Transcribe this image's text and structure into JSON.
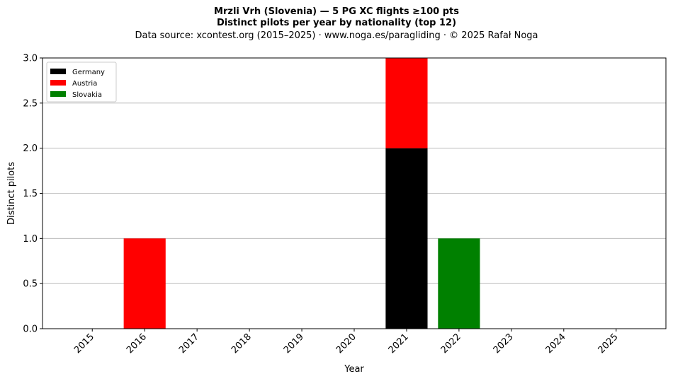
{
  "header": {
    "title_line1": "Mrzli Vrh (Slovenia)  —  5 PG XC flights ≥100 pts",
    "title_line2": "Distinct pilots per year by nationality (top 12)",
    "subtitle": "Data source: xcontest.org (2015–2025)  ·  www.noga.es/paragliding  ·  © 2025 Rafał Noga"
  },
  "chart_data": {
    "type": "bar",
    "stacked": true,
    "categories": [
      "2015",
      "2016",
      "2017",
      "2018",
      "2019",
      "2020",
      "2021",
      "2022",
      "2023",
      "2024",
      "2025"
    ],
    "series": [
      {
        "name": "Germany",
        "color": "#000000",
        "values": [
          0,
          0,
          0,
          0,
          0,
          0,
          2,
          0,
          0,
          0,
          0
        ]
      },
      {
        "name": "Austria",
        "color": "#ff0000",
        "values": [
          0,
          1,
          0,
          0,
          0,
          0,
          1,
          0,
          0,
          0,
          0
        ]
      },
      {
        "name": "Slovakia",
        "color": "#008000",
        "values": [
          0,
          0,
          0,
          0,
          0,
          0,
          0,
          1,
          0,
          0,
          0
        ]
      }
    ],
    "xlabel": "Year",
    "ylabel": "Distinct pilots",
    "ylim": [
      0,
      3
    ],
    "yticks": [
      "0.0",
      "0.5",
      "1.0",
      "1.5",
      "2.0",
      "2.5",
      "3.0"
    ],
    "grid": "y",
    "legend_position": "upper-left"
  }
}
